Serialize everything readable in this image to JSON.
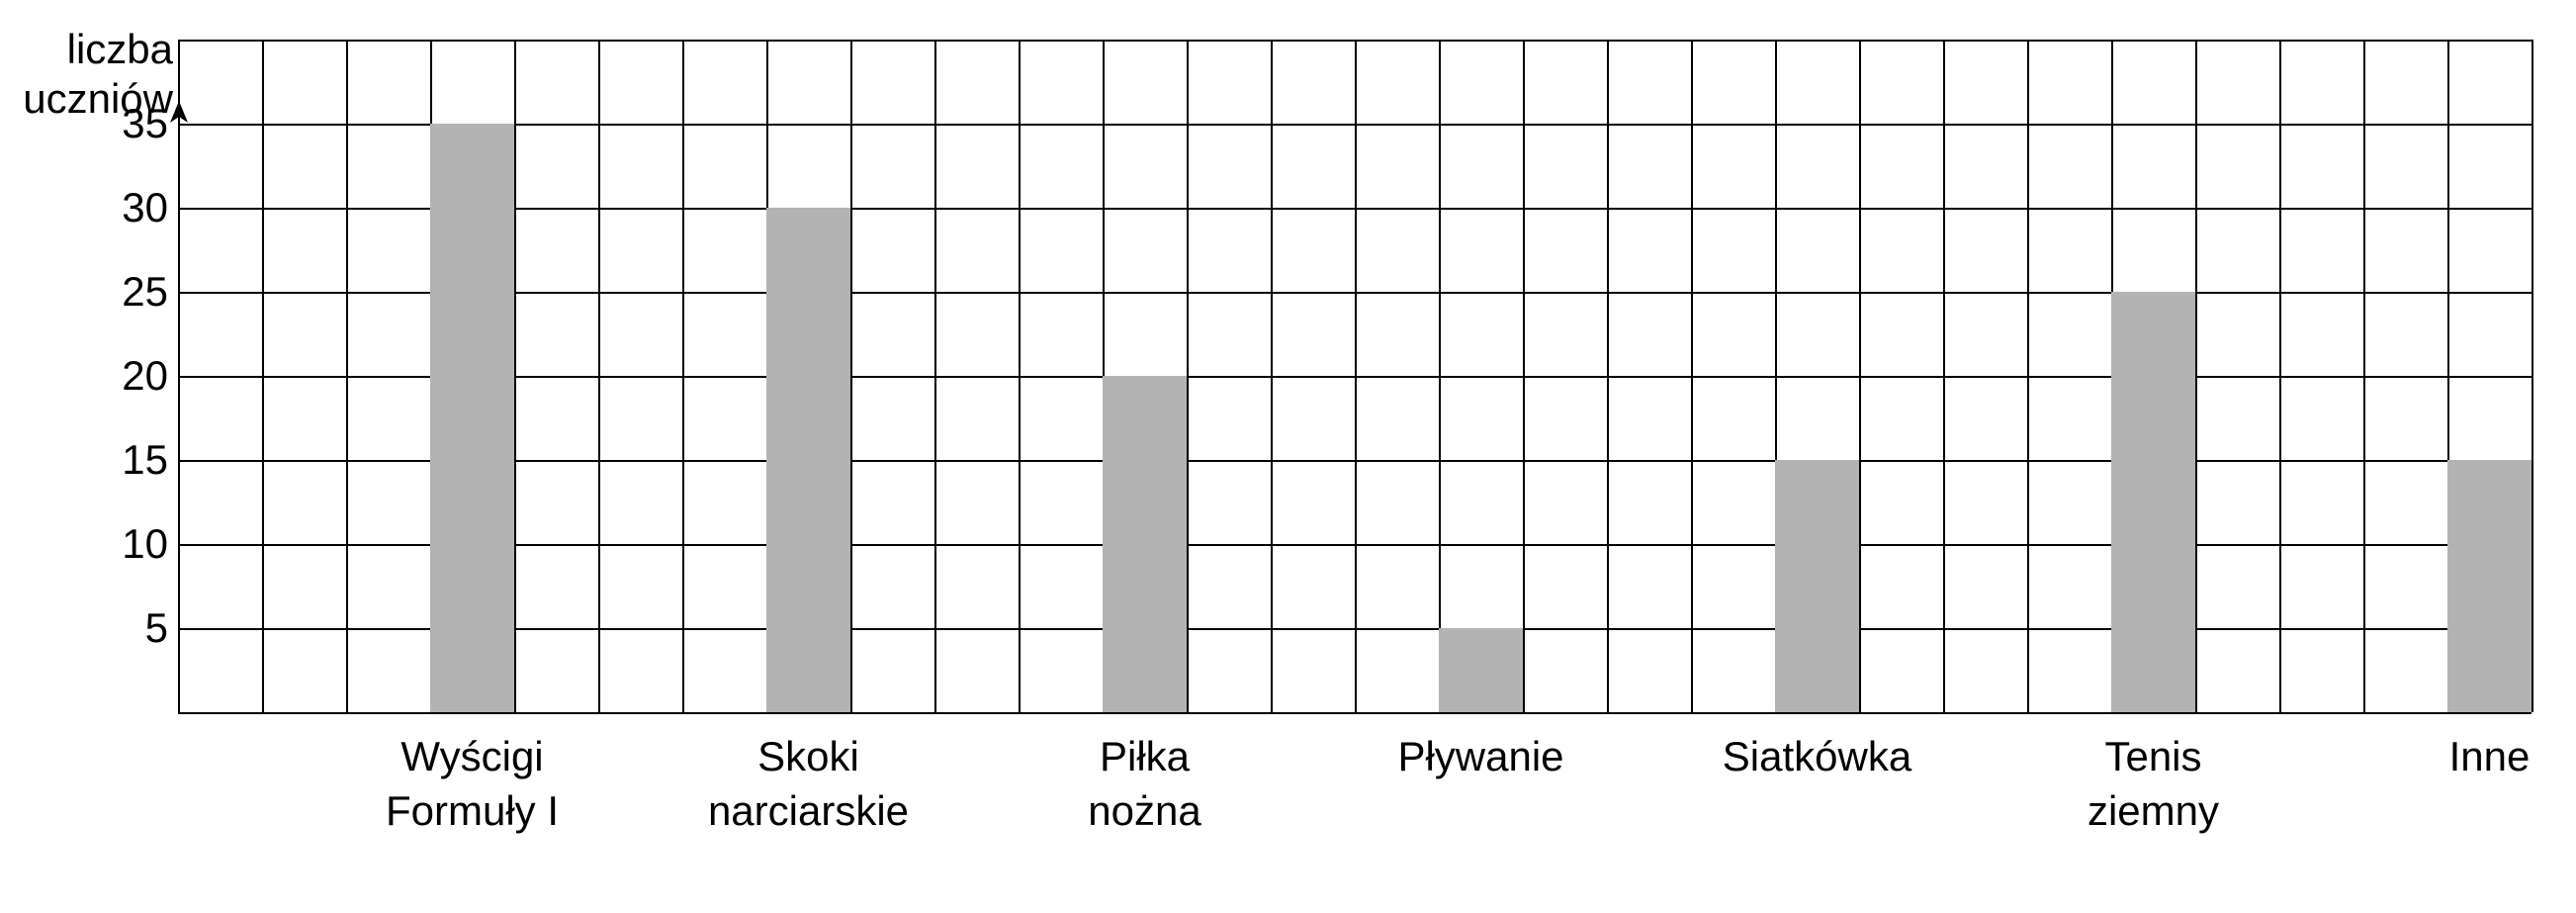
{
  "chart": {
    "type": "bar",
    "y_axis_title_line1": "liczba",
    "y_axis_title_line2": "uczniów",
    "y_ticks": [
      5,
      10,
      15,
      20,
      25,
      30,
      35
    ],
    "y_max": 40,
    "grid_cols": 28,
    "grid_rows": 8,
    "categories": [
      {
        "label_line1": "Wyścigi",
        "label_line2": "Formuły I",
        "value": 35,
        "col_index": 3
      },
      {
        "label_line1": "Skoki",
        "label_line2": "narciarskie",
        "value": 30,
        "col_index": 7
      },
      {
        "label_line1": "Piłka",
        "label_line2": "nożna",
        "value": 20,
        "col_index": 11
      },
      {
        "label_line1": "Pływanie",
        "label_line2": "",
        "value": 5,
        "col_index": 15
      },
      {
        "label_line1": "Siatkówka",
        "label_line2": "",
        "value": 15,
        "col_index": 19
      },
      {
        "label_line1": "Tenis",
        "label_line2": "ziemny",
        "value": 25,
        "col_index": 23
      },
      {
        "label_line1": "Inne",
        "label_line2": "",
        "value": 15,
        "col_index": 27
      }
    ],
    "colors": {
      "bar_fill": "#b3b3b3",
      "grid_line": "#000000",
      "background": "#ffffff",
      "text": "#000000"
    },
    "font_size_labels": 42,
    "font_size_ticks": 42
  }
}
